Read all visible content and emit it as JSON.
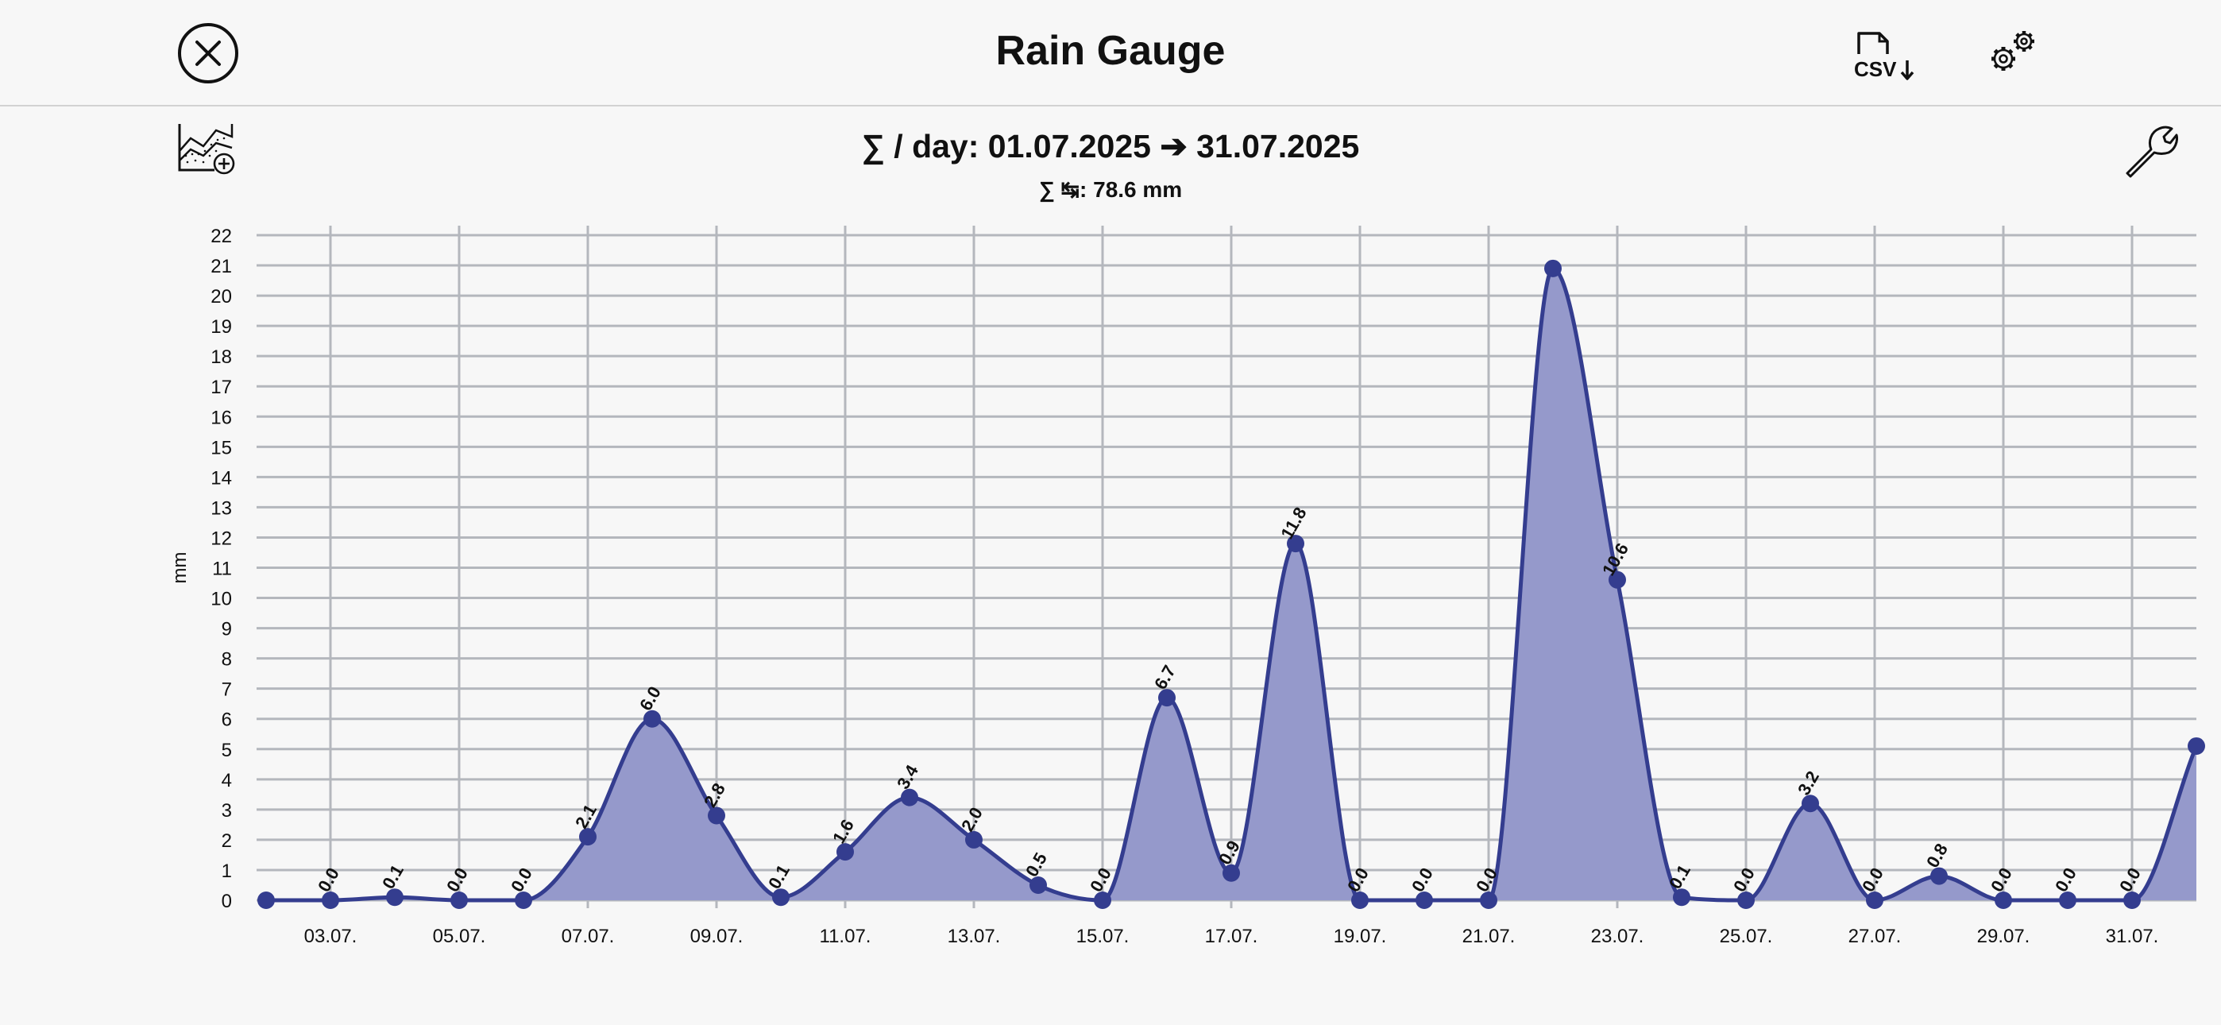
{
  "app": {
    "title": "Rain Gauge"
  },
  "toolbar": {
    "csv_label": "CSV"
  },
  "icons": [
    "close-icon",
    "csv-download-icon",
    "gear-icon",
    "chart-add-icon",
    "wrench-icon"
  ],
  "colors": {
    "series": "#343d8f",
    "fill": "#9599cb",
    "grid": "#b4b7bd"
  },
  "chart_data": {
    "type": "area",
    "title": "∑ / day: 01.07.2025 ➔ 31.07.2025",
    "subtitle": "∑ ↹: 78.6 mm",
    "ylabel": "mm",
    "ylim": [
      0,
      22
    ],
    "y_ticks": [
      0,
      1,
      2,
      3,
      4,
      5,
      6,
      7,
      8,
      9,
      10,
      11,
      12,
      13,
      14,
      15,
      16,
      17,
      18,
      19,
      20,
      21,
      22
    ],
    "x_ticks": [
      "03.07.",
      "05.07.",
      "07.07.",
      "09.07.",
      "11.07.",
      "13.07.",
      "15.07.",
      "17.07.",
      "19.07.",
      "21.07.",
      "23.07.",
      "25.07.",
      "27.07.",
      "29.07.",
      "31.07."
    ],
    "grid": true,
    "series": [
      {
        "values": [
          0.0,
          0.0,
          0.1,
          0.0,
          0.0,
          2.1,
          6.0,
          2.8,
          0.1,
          1.6,
          3.4,
          2.0,
          0.5,
          0.0,
          6.7,
          0.9,
          11.8,
          0.0,
          0.0,
          0.0,
          20.9,
          10.6,
          0.1,
          0.0,
          3.2,
          0.0,
          0.8,
          0.0,
          0.0,
          0.0,
          5.1
        ],
        "labels": [
          "",
          "0.0",
          "0.1",
          "0.0",
          "0.0",
          "2.1",
          "6.0",
          "2.8",
          "0.1",
          "1.6",
          "3.4",
          "2.0",
          "0.5",
          "0.0",
          "6.7",
          "0.9",
          "11.8",
          "0.0",
          "0.0",
          "0.0",
          "",
          "10.6",
          "0.1",
          "0.0",
          "3.2",
          "0.0",
          "0.8",
          "0.0",
          "0.0",
          "0.0",
          ""
        ]
      }
    ]
  }
}
